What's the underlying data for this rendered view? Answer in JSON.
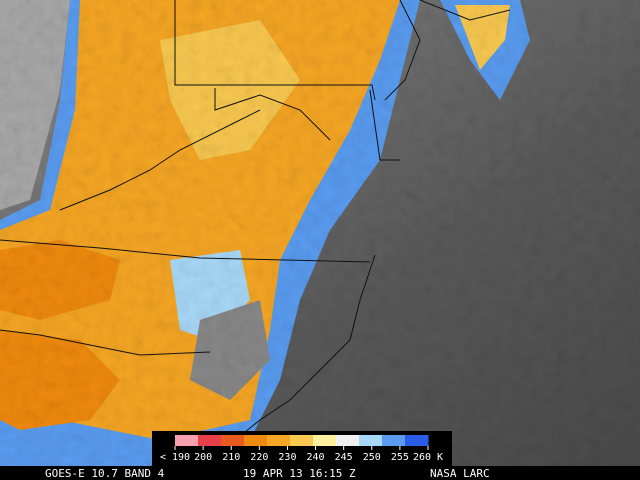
{
  "colorbar": {
    "labels": [
      "< 190",
      "200",
      "210",
      "220",
      "230",
      "240",
      "245",
      "250",
      "255",
      "260 K"
    ],
    "colors": [
      "#f7a0b0",
      "#e8404a",
      "#e85a20",
      "#f08a10",
      "#f5a623",
      "#f8c850",
      "#fff0a0",
      "#f0f0f0",
      "#a8d8f8",
      "#5a9cf0",
      "#2a5ce8"
    ]
  },
  "footer": {
    "satellite": "GOES-E 10.7 BAND 4",
    "time": "19 APR 13 16:15 Z",
    "source": "NASA LARC"
  }
}
